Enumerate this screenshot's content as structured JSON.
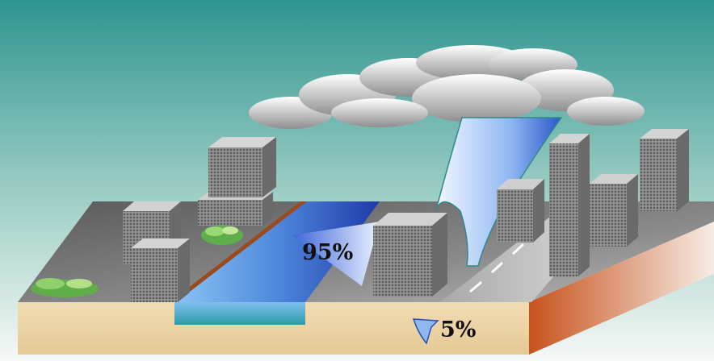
{
  "labels": {
    "river_share": "95%",
    "ground_share": "5%"
  },
  "colors": {
    "sky_top": "#3c9a96",
    "sky_bottom": "#f2f6f4",
    "ground_top": "#6a6a6a",
    "soil": "#ecd6a8",
    "river": "#5aa0e6",
    "rain": "#7fb2f2",
    "building": "#8d8d8d",
    "road": "#d6d6d6",
    "bank_edge": "#c45a22",
    "shrub": "#5fae4a"
  }
}
